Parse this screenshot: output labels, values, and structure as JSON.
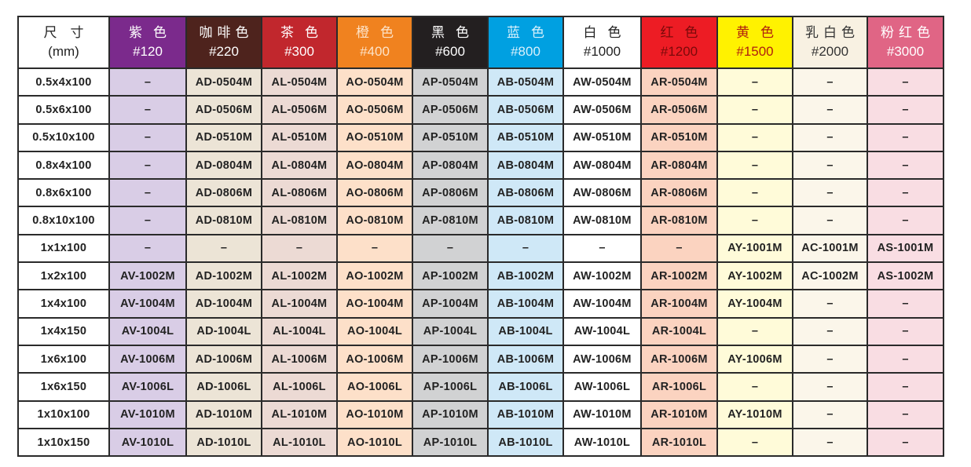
{
  "header": {
    "size": {
      "label": "尺　寸",
      "unit": "(mm)"
    },
    "colors": [
      {
        "name": "紫色",
        "code": "#120",
        "bg": "#7b2a8c",
        "fg": "#ffffff",
        "cell": "#d9cde6"
      },
      {
        "name": "咖啡色",
        "code": "#220",
        "bg": "#4e231d",
        "fg": "#ffffff",
        "cell": "#ece4d6"
      },
      {
        "name": "茶色",
        "code": "#300",
        "bg": "#c1272d",
        "fg": "#ffffff",
        "cell": "#ecdad4"
      },
      {
        "name": "橙色",
        "code": "#400",
        "bg": "#f0821f",
        "fg": "#fde3c8",
        "cell": "#fde0c9"
      },
      {
        "name": "黑色",
        "code": "#600",
        "bg": "#231f20",
        "fg": "#ffffff",
        "cell": "#d1d2d3"
      },
      {
        "name": "蓝色",
        "code": "#800",
        "bg": "#00a0e1",
        "fg": "#d8f0fb",
        "cell": "#cfe8f7"
      },
      {
        "name": "白色",
        "code": "#1000",
        "bg": "#ffffff",
        "fg": "#222222",
        "cell": "#ffffff"
      },
      {
        "name": "红色",
        "code": "#1200",
        "bg": "#ed1c24",
        "fg": "#7a0a0a",
        "cell": "#fbd3c0"
      },
      {
        "name": "黄色",
        "code": "#1500",
        "bg": "#fff200",
        "fg": "#b0200f",
        "cell": "#fffbd9"
      },
      {
        "name": "乳白色",
        "code": "#2000",
        "bg": "#f8f1e2",
        "fg": "#333333",
        "cell": "#fbf6ea"
      },
      {
        "name": "粉红色",
        "code": "#3000",
        "bg": "#e06585",
        "fg": "#ffffff",
        "cell": "#f9dde3"
      }
    ]
  },
  "rows": [
    {
      "size": "0.5x4x100",
      "cells": [
        "–",
        "AD-0504M",
        "AL-0504M",
        "AO-0504M",
        "AP-0504M",
        "AB-0504M",
        "AW-0504M",
        "AR-0504M",
        "–",
        "–",
        "–"
      ]
    },
    {
      "size": "0.5x6x100",
      "cells": [
        "–",
        "AD-0506M",
        "AL-0506M",
        "AO-0506M",
        "AP-0506M",
        "AB-0506M",
        "AW-0506M",
        "AR-0506M",
        "–",
        "–",
        "–"
      ]
    },
    {
      "size": "0.5x10x100",
      "cells": [
        "–",
        "AD-0510M",
        "AL-0510M",
        "AO-0510M",
        "AP-0510M",
        "AB-0510M",
        "AW-0510M",
        "AR-0510M",
        "–",
        "–",
        "–"
      ]
    },
    {
      "size": "0.8x4x100",
      "cells": [
        "–",
        "AD-0804M",
        "AL-0804M",
        "AO-0804M",
        "AP-0804M",
        "AB-0804M",
        "AW-0804M",
        "AR-0804M",
        "–",
        "–",
        "–"
      ]
    },
    {
      "size": "0.8x6x100",
      "cells": [
        "–",
        "AD-0806M",
        "AL-0806M",
        "AO-0806M",
        "AP-0806M",
        "AB-0806M",
        "AW-0806M",
        "AR-0806M",
        "–",
        "–",
        "–"
      ]
    },
    {
      "size": "0.8x10x100",
      "cells": [
        "–",
        "AD-0810M",
        "AL-0810M",
        "AO-0810M",
        "AP-0810M",
        "AB-0810M",
        "AW-0810M",
        "AR-0810M",
        "–",
        "–",
        "–"
      ]
    },
    {
      "size": "1x1x100",
      "cells": [
        "–",
        "–",
        "–",
        "–",
        "–",
        "–",
        "–",
        "–",
        "AY-1001M",
        "AC-1001M",
        "AS-1001M"
      ]
    },
    {
      "size": "1x2x100",
      "cells": [
        "AV-1002M",
        "AD-1002M",
        "AL-1002M",
        "AO-1002M",
        "AP-1002M",
        "AB-1002M",
        "AW-1002M",
        "AR-1002M",
        "AY-1002M",
        "AC-1002M",
        "AS-1002M"
      ]
    },
    {
      "size": "1x4x100",
      "cells": [
        "AV-1004M",
        "AD-1004M",
        "AL-1004M",
        "AO-1004M",
        "AP-1004M",
        "AB-1004M",
        "AW-1004M",
        "AR-1004M",
        "AY-1004M",
        "–",
        "–"
      ]
    },
    {
      "size": "1x4x150",
      "cells": [
        "AV-1004L",
        "AD-1004L",
        "AL-1004L",
        "AO-1004L",
        "AP-1004L",
        "AB-1004L",
        "AW-1004L",
        "AR-1004L",
        "–",
        "–",
        "–"
      ]
    },
    {
      "size": "1x6x100",
      "cells": [
        "AV-1006M",
        "AD-1006M",
        "AL-1006M",
        "AO-1006M",
        "AP-1006M",
        "AB-1006M",
        "AW-1006M",
        "AR-1006M",
        "AY-1006M",
        "–",
        "–"
      ]
    },
    {
      "size": "1x6x150",
      "cells": [
        "AV-1006L",
        "AD-1006L",
        "AL-1006L",
        "AO-1006L",
        "AP-1006L",
        "AB-1006L",
        "AW-1006L",
        "AR-1006L",
        "–",
        "–",
        "–"
      ]
    },
    {
      "size": "1x10x100",
      "cells": [
        "AV-1010M",
        "AD-1010M",
        "AL-1010M",
        "AO-1010M",
        "AP-1010M",
        "AB-1010M",
        "AW-1010M",
        "AR-1010M",
        "AY-1010M",
        "–",
        "–"
      ]
    },
    {
      "size": "1x10x150",
      "cells": [
        "AV-1010L",
        "AD-1010L",
        "AL-1010L",
        "AO-1010L",
        "AP-1010L",
        "AB-1010L",
        "AW-1010L",
        "AR-1010L",
        "–",
        "–",
        "–"
      ]
    }
  ]
}
